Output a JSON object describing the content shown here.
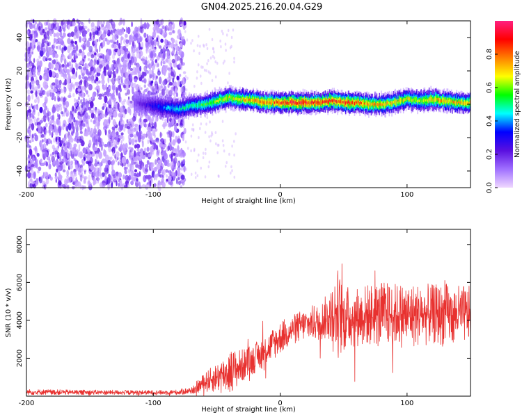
{
  "figure": {
    "title": "GN04.2025.216.20.04.G29"
  },
  "chart_data": [
    {
      "type": "heatmap",
      "title": "GN04.2025.216.20.04.G29",
      "xlabel": "Height of straight line (km)",
      "ylabel": "Frequency (Hz)",
      "xlim": [
        -200,
        150
      ],
      "ylim": [
        -50,
        50
      ],
      "x_ticks": [
        -200,
        -100,
        0,
        100
      ],
      "x_tick_labels": [
        "-200",
        "-100",
        "0",
        "100"
      ],
      "y_ticks": [
        -40,
        -20,
        0,
        20,
        40
      ],
      "y_tick_labels": [
        "-40",
        "-20",
        "0",
        "20",
        "40"
      ],
      "grid": false,
      "colorbar": {
        "label": "Normalized spectral amplitude",
        "range": [
          0,
          1
        ],
        "ticks": [
          0.0,
          0.2,
          0.4,
          0.6,
          0.8
        ],
        "tick_labels": [
          "0.0",
          "0.2",
          "0.4",
          "0.6",
          "0.8"
        ],
        "colors": [
          "#f0d8ff",
          "#a070ff",
          "#5a10e0",
          "#0000ff",
          "#00ffff",
          "#00ff00",
          "#ffff00",
          "#ff8000",
          "#ff0000",
          "#ff2080"
        ]
      },
      "ridge": {
        "start_x": -115,
        "end_x": 150,
        "x": [
          -115,
          -100,
          -90,
          -80,
          -70,
          -60,
          -50,
          -40,
          -30,
          -20,
          -10,
          0,
          10,
          20,
          30,
          40,
          50,
          60,
          70,
          80,
          90,
          100,
          110,
          120,
          130,
          140,
          150
        ],
        "frequency": [
          1,
          -1,
          -2,
          -3,
          -1,
          0,
          2,
          4,
          3,
          2,
          1,
          1,
          1,
          1,
          1,
          2,
          1,
          1,
          0,
          0,
          1,
          3,
          2,
          3,
          2,
          1,
          1
        ],
        "peak_amplitude": [
          0.15,
          0.3,
          0.4,
          0.45,
          0.5,
          0.55,
          0.6,
          0.65,
          0.7,
          0.75,
          0.8,
          0.85,
          0.9,
          0.9,
          0.85,
          0.85,
          0.85,
          0.8,
          0.75,
          0.7,
          0.7,
          0.65,
          0.65,
          0.7,
          0.75,
          0.7,
          0.7
        ]
      },
      "noise_region": {
        "x_range": [
          -200,
          -75
        ],
        "frequency_range": [
          -50,
          50
        ],
        "amplitude_range": [
          0.05,
          0.25
        ]
      }
    },
    {
      "type": "line",
      "xlabel": "Height of straight line (km)",
      "ylabel": "SNR (10 * v/v)",
      "xlim": [
        -200,
        150
      ],
      "ylim": [
        0,
        8800
      ],
      "x_ticks": [
        -200,
        -100,
        0,
        100
      ],
      "x_tick_labels": [
        "-200",
        "-100",
        "0",
        "100"
      ],
      "y_ticks": [
        2000,
        4000,
        6000,
        8000
      ],
      "y_tick_labels": [
        "2000",
        "4000",
        "6000",
        "8000"
      ],
      "grid": false,
      "color": "#e8312f",
      "envelope": {
        "x": [
          -200,
          -150,
          -100,
          -80,
          -70,
          -60,
          -50,
          -40,
          -30,
          -20,
          -10,
          0,
          10,
          20,
          30,
          40,
          45,
          50,
          60,
          70,
          80,
          90,
          100,
          110,
          120,
          130,
          140,
          150
        ],
        "mean": [
          220,
          200,
          190,
          210,
          300,
          700,
          1000,
          1300,
          1600,
          2000,
          2500,
          3100,
          3500,
          3800,
          3900,
          4300,
          4400,
          4100,
          4200,
          4300,
          4300,
          4300,
          4300,
          4300,
          4300,
          4300,
          4300,
          4300
        ],
        "spread": [
          150,
          130,
          120,
          140,
          200,
          500,
          800,
          1200,
          900,
          800,
          900,
          900,
          800,
          900,
          1000,
          1300,
          2500,
          1800,
          1600,
          1700,
          1800,
          1700,
          1800,
          1700,
          1600,
          1700,
          1600,
          1500
        ]
      }
    }
  ]
}
